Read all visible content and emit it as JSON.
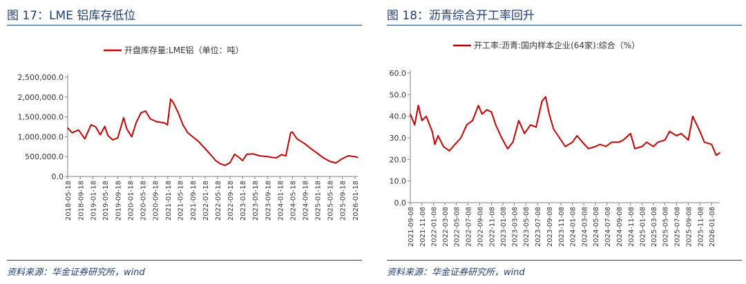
{
  "panels": {
    "left": {
      "title": "图 17：LME 铝库存低位",
      "source": "资料来源：华金证券研究所，wind"
    },
    "right": {
      "title": "图 18：沥青综合开工率回升",
      "source": "资料来源：华金证券研究所，wind"
    }
  },
  "chart_data": [
    {
      "type": "line",
      "title": "",
      "xlabel": "",
      "ylabel": "",
      "ylim": [
        0,
        2500000
      ],
      "yticks": [
        "0.0",
        "500,000.0",
        "1,000,000.0",
        "1,500,000.0",
        "2,000,000.0",
        "2,500,000.0"
      ],
      "xticks": [
        "2018-05-18",
        "2018-09-18",
        "2019-01-18",
        "2019-05-18",
        "2019-09-18",
        "2020-01-18",
        "2020-05-18",
        "2020-09-18",
        "2021-01-18",
        "2021-05-18",
        "2021-09-18",
        "2022-01-18",
        "2022-05-18",
        "2022-09-18",
        "2023-01-18",
        "2023-05-18",
        "2023-09-18",
        "2024-01-18",
        "2024-05-18",
        "2024-09-18",
        "2025-01-18",
        "2025-05-18",
        "2025-09-18",
        "2026-01-18"
      ],
      "grid": false,
      "legend_position": "top-center",
      "color": "#c00000",
      "series": [
        {
          "name": "开盘库存量:LME铝（单位：吨）",
          "x": [
            "2018-05-18",
            "2018-07-01",
            "2018-09-01",
            "2018-11-01",
            "2019-01-01",
            "2019-02-15",
            "2019-04-01",
            "2019-05-15",
            "2019-06-15",
            "2019-08-01",
            "2019-09-18",
            "2019-11-15",
            "2019-12-15",
            "2020-02-01",
            "2020-03-15",
            "2020-05-01",
            "2020-06-15",
            "2020-08-01",
            "2020-10-01",
            "2020-12-15",
            "2021-01-15",
            "2021-02-15",
            "2021-03-15",
            "2021-05-01",
            "2021-06-15",
            "2021-08-01",
            "2021-09-18",
            "2021-11-15",
            "2022-01-18",
            "2022-03-01",
            "2022-05-01",
            "2022-06-15",
            "2022-08-01",
            "2022-09-18",
            "2022-11-01",
            "2022-12-15",
            "2023-01-18",
            "2023-03-01",
            "2023-05-01",
            "2023-07-01",
            "2023-09-18",
            "2023-11-01",
            "2023-12-15",
            "2024-02-01",
            "2024-03-15",
            "2024-05-01",
            "2024-05-18",
            "2024-07-01",
            "2024-09-18",
            "2024-11-15",
            "2025-01-18",
            "2025-03-15",
            "2025-05-18",
            "2025-07-15",
            "2025-09-18",
            "2025-11-15",
            "2026-01-18",
            "2026-02-15"
          ],
          "values": [
            1220000,
            1100000,
            1170000,
            950000,
            1300000,
            1250000,
            1050000,
            1260000,
            1030000,
            920000,
            970000,
            1480000,
            1200000,
            1000000,
            1350000,
            1600000,
            1650000,
            1450000,
            1380000,
            1350000,
            1300000,
            1950000,
            1850000,
            1600000,
            1300000,
            1100000,
            1000000,
            880000,
            700000,
            580000,
            400000,
            320000,
            280000,
            350000,
            560000,
            480000,
            400000,
            560000,
            570000,
            520000,
            500000,
            480000,
            470000,
            550000,
            520000,
            1100000,
            1120000,
            950000,
            820000,
            700000,
            580000,
            470000,
            380000,
            340000,
            450000,
            520000,
            500000,
            480000
          ]
        }
      ]
    },
    {
      "type": "line",
      "title": "",
      "xlabel": "",
      "ylabel": "",
      "ylim": [
        0,
        60
      ],
      "yticks": [
        "0.0",
        "10.0",
        "20.0",
        "30.0",
        "40.0",
        "50.0",
        "60.0"
      ],
      "xticks": [
        "2021-09-08",
        "2021-11-08",
        "2022-01-08",
        "2022-03-08",
        "2022-05-08",
        "2022-07-08",
        "2022-09-08",
        "2022-11-08",
        "2023-01-08",
        "2023-03-08",
        "2023-05-08",
        "2023-07-08",
        "2023-09-08",
        "2023-11-08",
        "2024-01-08",
        "2024-03-08",
        "2024-05-08",
        "2024-07-08",
        "2024-09-08",
        "2024-11-08",
        "2025-01-08",
        "2025-03-08",
        "2025-05-08",
        "2025-07-08",
        "2025-09-08",
        "2025-11-08",
        "2026-01-08"
      ],
      "grid": false,
      "legend_position": "top-center",
      "color": "#c00000",
      "series": [
        {
          "name": "开工率:沥青:国内样本企业(64家):综合（%）",
          "x": [
            "2021-09-08",
            "2021-10-01",
            "2021-10-20",
            "2021-11-08",
            "2021-12-01",
            "2022-01-01",
            "2022-01-15",
            "2022-02-01",
            "2022-03-01",
            "2022-04-01",
            "2022-05-01",
            "2022-06-01",
            "2022-07-01",
            "2022-08-01",
            "2022-09-01",
            "2022-09-20",
            "2022-10-15",
            "2022-11-08",
            "2022-12-01",
            "2023-01-01",
            "2023-02-01",
            "2023-03-01",
            "2023-04-01",
            "2023-05-01",
            "2023-06-01",
            "2023-07-01",
            "2023-08-01",
            "2023-08-20",
            "2023-09-08",
            "2023-10-01",
            "2023-11-01",
            "2023-12-01",
            "2024-01-08",
            "2024-02-01",
            "2024-03-01",
            "2024-04-01",
            "2024-05-08",
            "2024-06-01",
            "2024-07-01",
            "2024-08-01",
            "2024-09-08",
            "2024-10-01",
            "2024-11-08",
            "2024-12-01",
            "2025-01-08",
            "2025-02-01",
            "2025-03-08",
            "2025-04-01",
            "2025-05-08",
            "2025-06-01",
            "2025-07-08",
            "2025-08-01",
            "2025-09-08",
            "2025-10-01",
            "2025-11-08",
            "2025-12-01",
            "2026-01-08",
            "2026-02-01",
            "2026-02-20"
          ],
          "values": [
            41,
            36,
            45,
            38,
            40,
            33,
            27,
            31,
            26,
            24,
            27,
            30,
            36,
            38,
            45,
            41,
            43,
            42,
            36,
            30,
            25,
            28,
            38,
            32,
            36,
            35,
            47,
            49,
            41,
            34,
            30,
            26,
            28,
            31,
            28,
            25,
            26,
            27,
            26,
            28,
            28,
            29,
            32,
            25,
            26,
            28,
            26,
            28,
            29,
            33,
            31,
            32,
            29,
            40,
            33,
            28,
            27,
            22,
            23
          ]
        }
      ]
    }
  ]
}
